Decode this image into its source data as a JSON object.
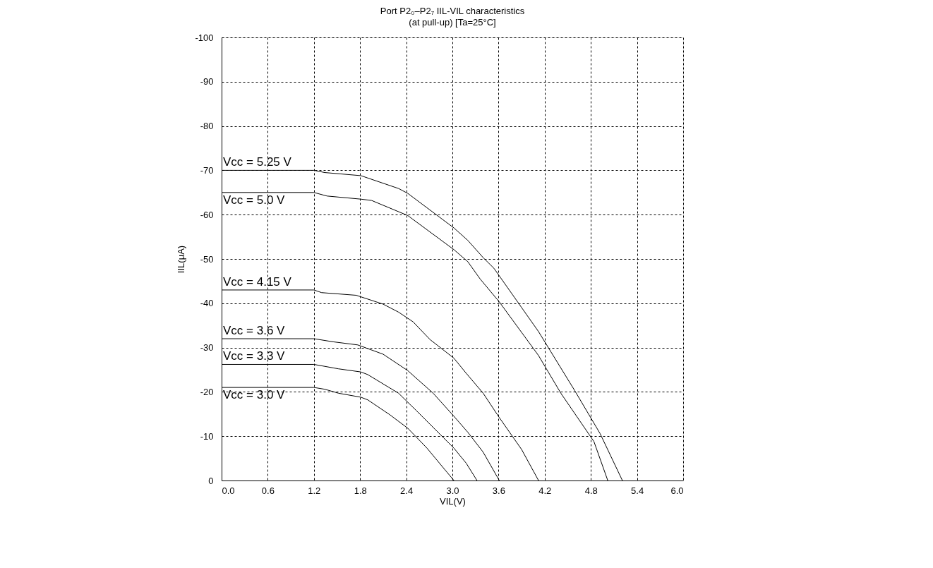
{
  "chart_data": {
    "type": "line",
    "title": "Port P2₀–P2₇ IIL-VIL characteristics",
    "subtitle": "(at pull-up) [Ta=25°C]",
    "xlabel": "VIL(V)",
    "ylabel": "IIL(μA)",
    "xlim": [
      0,
      6
    ],
    "xticks": [
      {
        "value": 0,
        "label": "0.0"
      },
      0.6,
      1.2,
      1.8,
      2.4,
      {
        "value": 3,
        "label": "3.0"
      },
      3.6,
      4.2,
      4.8,
      5.4,
      {
        "value": 6,
        "label": "6.0"
      }
    ],
    "ylim": [
      0,
      -100
    ],
    "yticks": [
      0,
      -10,
      -20,
      -30,
      -40,
      -50,
      -60,
      -70,
      -80,
      -90,
      -100
    ],
    "grid": true,
    "marker": "none",
    "line_style": "solid",
    "series": [
      {
        "name": "Vcc = 5.25 V",
        "color": "#000000",
        "x": [
          0,
          1.2,
          1.34,
          1.81,
          2.3,
          2.42,
          3.02,
          3.2,
          3.4,
          3.54,
          4.12,
          4.59,
          4.92,
          5.21
        ],
        "values": [
          -70,
          -70,
          -69.5,
          -68.8,
          -65.9,
          -64.8,
          -57,
          -54.2,
          -50.3,
          -47.9,
          -33.6,
          -20.3,
          -10.6,
          0
        ]
      },
      {
        "name": "Vcc = 5.0 V",
        "color": "#000000",
        "x": [
          0,
          1.2,
          1.37,
          1.81,
          1.95,
          2.42,
          3.02,
          3.2,
          3.36,
          3.61,
          4.12,
          4.41,
          4.84,
          5.02
        ],
        "values": [
          -65,
          -65,
          -64.2,
          -63.5,
          -63.2,
          -59.8,
          -52.1,
          -49.4,
          -45.5,
          -40.3,
          -28.2,
          -19.7,
          -8.8,
          0
        ]
      },
      {
        "name": "Vcc = 4.15 V",
        "color": "#000000",
        "x": [
          0,
          1.2,
          1.3,
          1.75,
          2.1,
          2.3,
          2.49,
          2.71,
          3.02,
          3.18,
          3.4,
          3.61,
          3.9,
          4.12
        ],
        "values": [
          -43,
          -43,
          -42.4,
          -41.8,
          -39.8,
          -38,
          -35.8,
          -31.8,
          -27.6,
          -24.2,
          -19.7,
          -14.2,
          -7,
          0
        ]
      },
      {
        "name": "Vcc = 3.6 V",
        "color": "#000000",
        "x": [
          0,
          1.2,
          1.45,
          1.77,
          2.1,
          2.42,
          2.75,
          3.02,
          3.2,
          3.4,
          3.61
        ],
        "values": [
          -32,
          -32,
          -31.3,
          -30.6,
          -28.5,
          -24.8,
          -19.7,
          -14.5,
          -10.9,
          -6.4,
          0
        ]
      },
      {
        "name": "Vcc = 3.3 V",
        "color": "#000000",
        "x": [
          0,
          1.2,
          1.52,
          1.81,
          1.9,
          2.3,
          2.53,
          3.02,
          3.18,
          3.32
        ],
        "values": [
          -26.2,
          -26.2,
          -25.2,
          -24.5,
          -23.9,
          -19.7,
          -15.8,
          -7.3,
          -3.9,
          0
        ]
      },
      {
        "name": "Vcc = 3.0 V",
        "color": "#000000",
        "x": [
          0,
          1.2,
          1.34,
          1.52,
          1.81,
          1.9,
          2.19,
          2.42,
          2.67,
          2.89,
          3.02
        ],
        "values": [
          -21,
          -21,
          -20.6,
          -19.7,
          -18.8,
          -18.2,
          -14.8,
          -11.8,
          -7.3,
          -2.7,
          0
        ]
      }
    ]
  }
}
